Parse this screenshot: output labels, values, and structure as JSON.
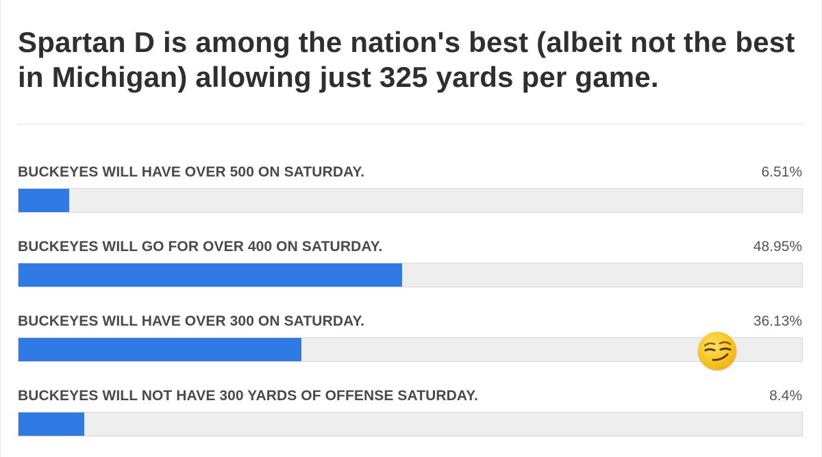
{
  "poll": {
    "title": "Spartan D is among the nation's best (albeit not the best in Michigan) allowing just 325 yards per game.",
    "options": [
      {
        "label": "BUCKEYES WILL HAVE OVER 500 ON SATURDAY.",
        "percent_text": "6.51%",
        "percent": 6.51
      },
      {
        "label": "BUCKEYES WILL GO FOR OVER 400 ON SATURDAY.",
        "percent_text": "48.95%",
        "percent": 48.95
      },
      {
        "label": "BUCKEYES WILL HAVE OVER 300 ON SATURDAY.",
        "percent_text": "36.13%",
        "percent": 36.13
      },
      {
        "label": "BUCKEYES WILL NOT HAVE 300 YARDS OF OFFENSE SATURDAY.",
        "percent_text": "8.4%",
        "percent": 8.4
      }
    ],
    "accent_color": "#2f7ae5",
    "track_color": "#eeeeee"
  },
  "overlay": {
    "icon": "smirking-face-emoji"
  }
}
